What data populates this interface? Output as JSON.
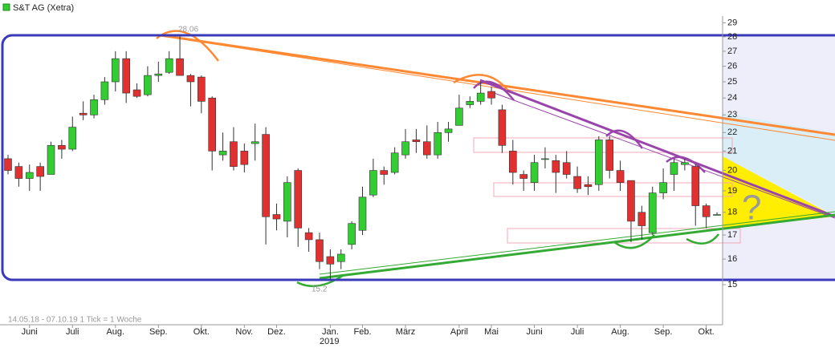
{
  "chart_data": {
    "type": "candlestick",
    "legend": "S&T AG (Xetra)",
    "subtitle": "14.05.18 - 07.10.19   1 Tick = 1 Woche",
    "year_label": "2019",
    "annotations": [
      "28.06",
      "15.2",
      "?"
    ],
    "log_scale": true,
    "up_color": "#33cc33",
    "down_color": "#e03030",
    "categories": [
      null,
      null,
      "Juni",
      null,
      null,
      null,
      "Juli",
      null,
      null,
      null,
      "Aug.",
      null,
      null,
      null,
      "Sep.",
      null,
      null,
      null,
      "Okt.",
      null,
      null,
      null,
      "Nov.",
      null,
      null,
      "Dez.",
      null,
      null,
      null,
      null,
      "Jan.",
      null,
      null,
      "Feb.",
      null,
      null,
      null,
      "März",
      null,
      null,
      null,
      null,
      "April",
      null,
      null,
      "Mai",
      null,
      null,
      null,
      "Juni",
      null,
      null,
      null,
      "Juli",
      null,
      null,
      null,
      "Aug.",
      null,
      null,
      null,
      "Sep.",
      null,
      null,
      null,
      "Okt.",
      null
    ],
    "open": [
      20.6,
      20.2,
      19.6,
      20.2,
      19.8,
      21.3,
      21.1,
      23.1,
      23.0,
      23.9,
      25.0,
      26.5,
      24.5,
      24.2,
      25.4,
      25.6,
      26.5,
      25.4,
      25.3,
      24.0,
      20.8,
      21.5,
      21.0,
      21.4,
      21.9,
      17.9,
      17.6,
      20.0,
      17.1,
      16.8,
      16.1,
      15.9,
      16.6,
      17.2,
      18.8,
      20.0,
      19.9,
      20.8,
      21.6,
      21.5,
      20.8,
      22.0,
      22.4,
      23.6,
      23.8,
      24.4,
      23.3,
      21.0,
      19.8,
      19.4,
      20.6,
      20.5,
      20.4,
      19.7,
      19.3,
      19.3,
      21.6,
      20.0,
      19.5,
      18.0,
      17.1,
      18.9,
      19.8,
      20.3,
      20.2,
      18.3,
      17.9
    ],
    "high": [
      20.8,
      20.4,
      20.3,
      20.4,
      21.5,
      21.6,
      22.9,
      23.8,
      24.2,
      25.3,
      27.0,
      27.0,
      24.9,
      26.0,
      26.3,
      27.0,
      28.06,
      25.5,
      25.4,
      24.1,
      22.0,
      22.3,
      21.4,
      22.5,
      22.3,
      18.4,
      19.7,
      20.1,
      17.3,
      17.1,
      16.4,
      16.4,
      17.6,
      19.2,
      20.6,
      20.2,
      21.2,
      22.2,
      22.2,
      22.4,
      22.6,
      22.6,
      24.2,
      24.1,
      25.0,
      24.7,
      23.6,
      21.6,
      20.0,
      20.8,
      21.2,
      20.8,
      21.0,
      20.2,
      19.7,
      21.8,
      21.8,
      20.5,
      19.5,
      18.3,
      19.2,
      20.1,
      20.6,
      20.6,
      20.3,
      18.4,
      18.0
    ],
    "low": [
      19.8,
      19.2,
      19.0,
      19.0,
      19.8,
      20.6,
      21.0,
      22.7,
      22.8,
      23.6,
      24.4,
      23.7,
      24.0,
      24.1,
      25.0,
      25.5,
      25.4,
      23.5,
      23.1,
      20.0,
      20.5,
      20.0,
      19.9,
      20.5,
      16.6,
      17.2,
      16.9,
      16.5,
      16.3,
      15.6,
      15.2,
      15.6,
      16.4,
      17.0,
      18.7,
      19.3,
      19.8,
      20.6,
      20.9,
      20.6,
      20.6,
      21.5,
      22.4,
      23.4,
      23.6,
      23.6,
      20.9,
      19.3,
      19.0,
      19.0,
      20.1,
      18.9,
      19.6,
      18.9,
      18.8,
      19.0,
      19.6,
      19.0,
      16.7,
      16.8,
      17.0,
      18.6,
      19.0,
      20.0,
      17.4,
      17.3,
      17.9
    ],
    "close": [
      20.0,
      19.6,
      19.9,
      19.7,
      21.3,
      21.1,
      22.3,
      23.0,
      23.9,
      25.0,
      26.5,
      24.3,
      24.1,
      25.4,
      25.5,
      26.5,
      25.4,
      25.0,
      23.8,
      21.0,
      21.0,
      20.2,
      20.3,
      21.5,
      17.8,
      17.7,
      19.4,
      17.3,
      16.8,
      15.9,
      15.8,
      16.2,
      17.5,
      18.7,
      20.0,
      19.8,
      20.9,
      21.5,
      21.5,
      20.8,
      22.0,
      22.2,
      23.4,
      23.8,
      24.3,
      24.0,
      21.3,
      19.9,
      19.6,
      20.4,
      20.6,
      19.9,
      19.8,
      19.1,
      19.2,
      21.6,
      20.0,
      19.4,
      17.6,
      17.4,
      18.9,
      19.4,
      20.4,
      20.4,
      18.3,
      17.8,
      17.9
    ],
    "ylim": [
      13.7,
      29.5
    ],
    "yticks": [
      15,
      16,
      17,
      18,
      19,
      20,
      21,
      22,
      23,
      24,
      25,
      26,
      27,
      28,
      29
    ]
  }
}
